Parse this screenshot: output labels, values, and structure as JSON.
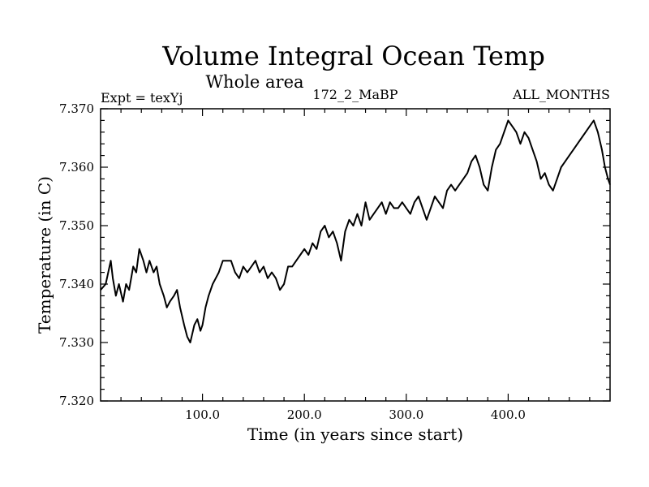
{
  "chart_data": {
    "type": "line",
    "title": "Volume Integral Ocean Temp",
    "subtitle": "Whole area",
    "annotations": {
      "left": "Expt = texYj",
      "center": "172_2_MaBP",
      "right": "ALL_MONTHS"
    },
    "xlabel": "Time (in years since start)",
    "ylabel": "Temperature (in C)",
    "xlim": [
      0,
      500
    ],
    "ylim": [
      7.32,
      7.37
    ],
    "x_ticks": [
      100,
      200,
      300,
      400
    ],
    "x_tick_labels": [
      "100.0",
      "200.0",
      "300.0",
      "400.0"
    ],
    "y_ticks": [
      7.32,
      7.33,
      7.34,
      7.35,
      7.36,
      7.37
    ],
    "y_tick_labels": [
      "7.320",
      "7.330",
      "7.340",
      "7.350",
      "7.360",
      "7.370"
    ],
    "grid": false,
    "line_color": "#000000",
    "series": [
      {
        "x": [
          0,
          5,
          10,
          12,
          15,
          18,
          22,
          25,
          28,
          32,
          35,
          38,
          42,
          45,
          48,
          52,
          55,
          58,
          62,
          65,
          68,
          72,
          75,
          78,
          82,
          85,
          88,
          92,
          95,
          98,
          100,
          103,
          106,
          110,
          113,
          116,
          120,
          124,
          128,
          132,
          136,
          140,
          144,
          148,
          152,
          156,
          160,
          164,
          168,
          172,
          176,
          180,
          184,
          188,
          192,
          196,
          200,
          204,
          208,
          212,
          216,
          220,
          224,
          228,
          232,
          236,
          240,
          244,
          248,
          252,
          256,
          260,
          264,
          268,
          272,
          276,
          280,
          284,
          288,
          292,
          296,
          300,
          304,
          308,
          312,
          316,
          320,
          324,
          328,
          332,
          336,
          340,
          344,
          348,
          352,
          356,
          360,
          364,
          368,
          372,
          376,
          380,
          384,
          388,
          392,
          396,
          400,
          404,
          408,
          412,
          416,
          420,
          424,
          428,
          432,
          436,
          440,
          444,
          448,
          452,
          456,
          460,
          464,
          468,
          472,
          476,
          480,
          484,
          488,
          492,
          495,
          498,
          500
        ],
        "y": [
          7.339,
          7.34,
          7.344,
          7.341,
          7.338,
          7.34,
          7.337,
          7.34,
          7.339,
          7.343,
          7.342,
          7.346,
          7.344,
          7.342,
          7.344,
          7.342,
          7.343,
          7.34,
          7.338,
          7.336,
          7.337,
          7.338,
          7.339,
          7.336,
          7.333,
          7.331,
          7.33,
          7.333,
          7.334,
          7.332,
          7.333,
          7.336,
          7.338,
          7.34,
          7.341,
          7.342,
          7.344,
          7.344,
          7.344,
          7.342,
          7.341,
          7.343,
          7.342,
          7.343,
          7.344,
          7.342,
          7.343,
          7.341,
          7.342,
          7.341,
          7.339,
          7.34,
          7.343,
          7.343,
          7.344,
          7.345,
          7.346,
          7.345,
          7.347,
          7.346,
          7.349,
          7.35,
          7.348,
          7.349,
          7.347,
          7.344,
          7.349,
          7.351,
          7.35,
          7.352,
          7.35,
          7.354,
          7.351,
          7.352,
          7.353,
          7.354,
          7.352,
          7.354,
          7.353,
          7.353,
          7.354,
          7.353,
          7.352,
          7.354,
          7.355,
          7.353,
          7.351,
          7.353,
          7.355,
          7.354,
          7.353,
          7.356,
          7.357,
          7.356,
          7.357,
          7.358,
          7.359,
          7.361,
          7.362,
          7.36,
          7.357,
          7.356,
          7.36,
          7.363,
          7.364,
          7.366,
          7.368,
          7.367,
          7.366,
          7.364,
          7.366,
          7.365,
          7.363,
          7.361,
          7.358,
          7.359,
          7.357,
          7.356,
          7.358,
          7.36,
          7.361,
          7.362,
          7.363,
          7.364,
          7.365,
          7.366,
          7.367,
          7.368,
          7.366,
          7.363,
          7.36,
          7.358,
          7.357
        ]
      }
    ]
  }
}
